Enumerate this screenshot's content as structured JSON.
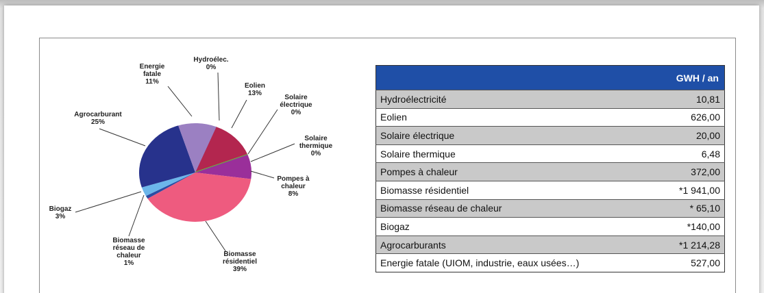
{
  "chart_data": {
    "type": "pie",
    "categories": [
      "Hydroélec.",
      "Eolien",
      "Solaire électrique",
      "Solaire thermique",
      "Pompes à chaleur",
      "Biomasse résidentiel",
      "Biomasse réseau de chaleur",
      "Biogaz",
      "Agrocarburant",
      "Energie fatale"
    ],
    "values": [
      0,
      13,
      0,
      0,
      8,
      39,
      1,
      3,
      25,
      11
    ],
    "value_labels": [
      "0%",
      "13%",
      "0%",
      "0%",
      "8%",
      "39%",
      "1%",
      "3%",
      "25%",
      "11%"
    ],
    "colors": [
      "#8a6fb8",
      "#b3264f",
      "#bdbdbd",
      "#63b03c",
      "#9a2f9a",
      "#ee5b7f",
      "#2b4da3",
      "#6cb6ea",
      "#27328c",
      "#9b80c2"
    ]
  },
  "table": {
    "header": "GWH / an",
    "rows": [
      [
        "Hydroélectricité",
        "10,81"
      ],
      [
        "Eolien",
        "626,00"
      ],
      [
        "Solaire électrique",
        "20,00"
      ],
      [
        "Solaire thermique",
        "6,48"
      ],
      [
        "Pompes à chaleur",
        "372,00"
      ],
      [
        "Biomasse résidentiel",
        "*1 941,00"
      ],
      [
        "Biomasse réseau de chaleur",
        "* 65,10"
      ],
      [
        "Biogaz",
        "*140,00"
      ],
      [
        "Agrocarburants",
        "*1 214,28"
      ],
      [
        "Energie fatale (UIOM, industrie, eaux usées…)",
        "527,00"
      ]
    ]
  }
}
